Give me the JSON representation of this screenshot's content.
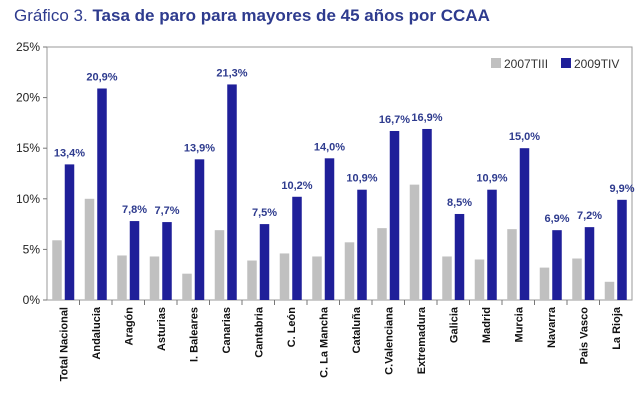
{
  "title": {
    "prefix": "Gráfico 3.",
    "main": "Tasa de paro para mayores de 45 años por CCAA"
  },
  "colors": {
    "s2007": "#c0c0c0",
    "s2009": "#1f1f99",
    "label": "#2e3b8e"
  },
  "chart_data": {
    "type": "bar",
    "title": "Gráfico 3. Tasa de paro para mayores de 45 años por CCAA",
    "xlabel": "",
    "ylabel": "",
    "ylim": [
      0,
      25
    ],
    "yticks": [
      "0%",
      "5%",
      "10%",
      "15%",
      "20%",
      "25%"
    ],
    "legend": "top-right",
    "categories": [
      "Total Nacional",
      "Andalucia",
      "Aragón",
      "Asturias",
      "I. Baleares",
      "Canarias",
      "Cantabria",
      "C. León",
      "C. La Mancha",
      "Cataluña",
      "C.Valenciana",
      "Extremadura",
      "Galicia",
      "Madrid",
      "Murcia",
      "Navarra",
      "Pais Vasco",
      "La Rioja"
    ],
    "series": [
      {
        "name": "2007TIII",
        "values": [
          5.9,
          10.0,
          4.4,
          4.3,
          2.6,
          6.9,
          3.9,
          4.6,
          4.3,
          5.7,
          7.1,
          11.4,
          4.3,
          4.0,
          7.0,
          3.2,
          4.1,
          1.8
        ]
      },
      {
        "name": "2009TIV",
        "values": [
          13.4,
          20.9,
          7.8,
          7.7,
          13.9,
          21.3,
          7.5,
          10.2,
          14.0,
          10.9,
          16.7,
          16.9,
          8.5,
          10.9,
          15.0,
          6.9,
          7.2,
          9.9
        ]
      }
    ],
    "data_labels": [
      "13,4%",
      "20,9%",
      "7,8%",
      "7,7%",
      "13,9%",
      "21,3%",
      "7,5%",
      "10,2%",
      "14,0%",
      "10,9%",
      "16,7%",
      "16,9%",
      "8,5%",
      "10,9%",
      "15,0%",
      "6,9%",
      "7,2%",
      "9,9%"
    ]
  }
}
